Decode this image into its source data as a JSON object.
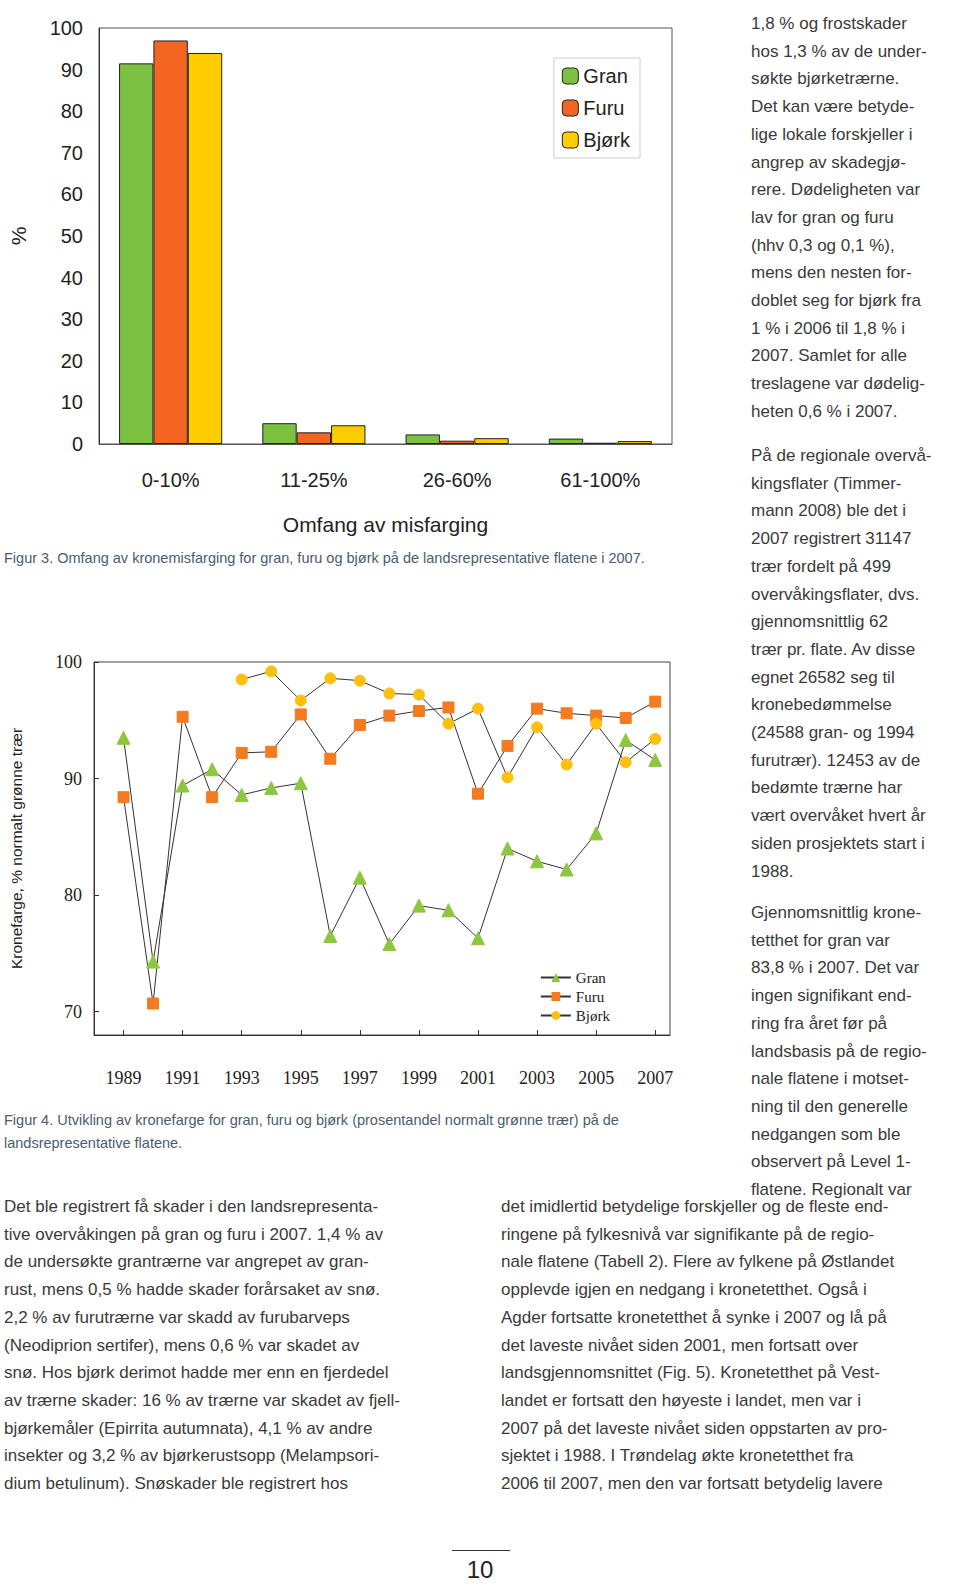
{
  "chart_data": [
    {
      "type": "bar",
      "title": "Figur 3. Omfang av kronemisfarging for gran, furu og bjørk på de landsrepresentative flatene i 2007.",
      "xlabel": "Omfang av misfarging",
      "ylabel": "%",
      "categories": [
        "0-10%",
        "11-25%",
        "26-60%",
        "61-100%"
      ],
      "series": [
        {
          "name": "Gran",
          "color": "#7dc142",
          "values": [
            91.5,
            5.0,
            2.3,
            1.3
          ]
        },
        {
          "name": "Furu",
          "color": "#f26522",
          "values": [
            97.0,
            2.8,
            0.8,
            0.3
          ]
        },
        {
          "name": "Bjørk",
          "color": "#ffcc00",
          "values": [
            94.0,
            4.5,
            1.4,
            0.7
          ]
        }
      ],
      "ylim": [
        0,
        100
      ],
      "yticks": [
        0,
        10,
        20,
        30,
        40,
        50,
        60,
        70,
        80,
        90,
        100
      ],
      "grid": false,
      "legend": "upper right"
    },
    {
      "type": "line",
      "title": "Figur 4. Utvikling av kronefarge for gran, furu og bjørk (prosentandel normalt grønne trær) på de landsrepresentative flatene.",
      "ylabel": "Kronefarge, % normalt grønne trær",
      "x": [
        1989,
        1990,
        1991,
        1992,
        1993,
        1994,
        1995,
        1996,
        1997,
        1998,
        1999,
        2000,
        2001,
        2002,
        2003,
        2004,
        2005,
        2006,
        2007
      ],
      "series": [
        {
          "name": "Gran",
          "color": "#8dc63f",
          "marker": "triangle",
          "line_style": "solid",
          "values": [
            93.5,
            74.3,
            89.4,
            90.8,
            88.6,
            89.2,
            89.6,
            76.5,
            81.5,
            75.8,
            79.1,
            78.7,
            76.3,
            84.0,
            82.9,
            82.2,
            85.3,
            93.3,
            91.6
          ]
        },
        {
          "name": "Furu",
          "color": "#f47b20",
          "marker": "square",
          "line_style": "solid",
          "values": [
            88.4,
            70.7,
            95.3,
            88.4,
            92.2,
            92.3,
            95.5,
            91.7,
            94.6,
            95.4,
            95.8,
            96.1,
            88.7,
            92.8,
            96.0,
            95.6,
            95.4,
            95.2,
            96.6
          ]
        },
        {
          "name": "Bjørk",
          "color": "#fdc010",
          "marker": "circle",
          "line_style": "solid",
          "values": [
            null,
            null,
            null,
            null,
            98.5,
            99.2,
            96.7,
            98.6,
            98.4,
            97.3,
            97.2,
            94.7,
            96.0,
            90.1,
            94.4,
            91.2,
            94.7,
            91.4,
            93.4
          ]
        }
      ],
      "xlim": [
        1988,
        2007.5
      ],
      "xticks": [
        1989,
        1991,
        1993,
        1995,
        1997,
        1999,
        2001,
        2003,
        2005,
        2007
      ],
      "ylim": [
        68,
        100
      ],
      "yticks": [
        70,
        80,
        90,
        100
      ],
      "grid": false,
      "legend": "lower right"
    }
  ],
  "page": {
    "right_column": [
      [
        "1,8 % og frostskader",
        "hos 1,3 % av de under-",
        "søkte bjørketrærne.",
        "Det kan være betyde-",
        "lige lokale forskjeller i",
        "angrep av skadegjø-",
        "rere. Dødeligheten var",
        "lav for gran og furu",
        "(hhv 0,3 og 0,1 %),",
        "mens den nesten for-",
        "doblet seg for bjørk fra",
        "1 % i 2006 til 1,8 % i",
        "2007. Samlet for alle",
        "treslagene var dødelig-",
        "heten 0,6 % i 2007."
      ],
      [
        "På de regionale overvå-",
        "kingsflater (Timmer-",
        "mann 2008) ble det i",
        "2007 registrert 31147",
        "trær fordelt på 499",
        "overvåkingsflater, dvs.",
        "gjennomsnittlig 62",
        "trær pr. flate. Av disse",
        "egnet 26582 seg til",
        "kronebedømmelse",
        "(24588 gran- og 1994",
        "furutrær). 12453 av de",
        "bedømte trærne har",
        "vært overvåket hvert år",
        "siden prosjektets start i",
        "1988."
      ],
      [
        "Gjennomsnittlig krone-",
        "tetthet for gran var",
        "83,8 % i 2007. Det var",
        "ingen signifikant end-",
        "ring fra året før på",
        "landsbasis på de regio-",
        "nale flatene i motset-",
        "ning til den generelle",
        "nedgangen som ble",
        "observert på Level 1-",
        "flatene. Regionalt var"
      ]
    ],
    "bottom_left": [
      "Det ble registrert få skader i den landsrepresenta-",
      "tive overvåkingen på gran og furu i 2007. 1,4 % av",
      "de undersøkte grantrærne var angrepet av gran-",
      "rust, mens 0,5 % hadde skader forårsaket av snø.",
      "2,2 % av furutrærne var skadd av furubarveps",
      "(Neodiprion sertifer), mens 0,6 % var skadet av",
      "snø. Hos bjørk derimot hadde mer enn en fjerdedel",
      "av trærne skader: 16 % av trærne var skadet av fjell-",
      "bjørkemåler (Epirrita autumnata), 4,1 % av andre",
      "insekter og 3,2 % av bjørkerustsopp (Melampsori-",
      "dium betulinum). Snøskader ble registrert hos"
    ],
    "bottom_right": [
      "det imidlertid betydelige forskjeller og de fleste end-",
      "ringene på fylkesnivå var signifikante på de regio-",
      "nale flatene (Tabell 2). Flere av fylkene på Østlandet",
      "opplevde igjen en nedgang i kronetetthet. Også i",
      "Agder fortsatte kronetetthet å synke i 2007 og lå på",
      "det laveste nivået siden 2001, men fortsatt over",
      "landsgjennomsnittet (Fig. 5). Kronetetthet på Vest-",
      "landet er fortsatt den høyeste i landet, men var i",
      "2007 på det laveste nivået siden oppstarten av pro-",
      "sjektet i 1988. I Trøndelag økte kronetetthet fra",
      "2006 til 2007, men den var fortsatt betydelig lavere"
    ],
    "page_number": "10"
  }
}
